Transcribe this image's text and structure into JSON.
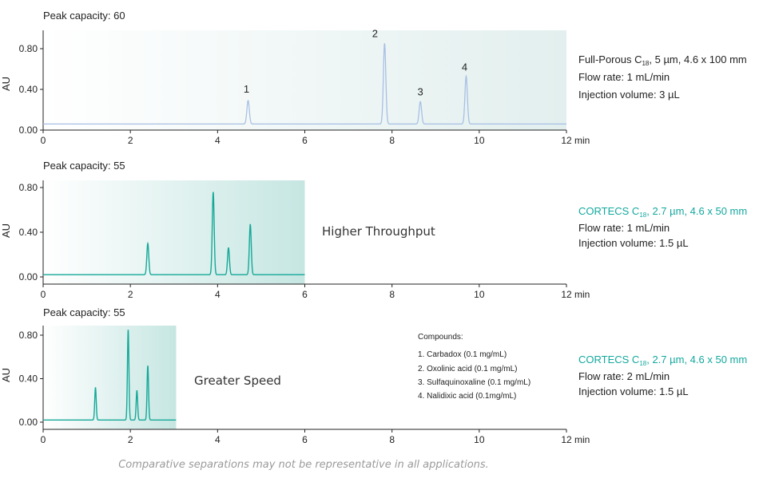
{
  "colors": {
    "blue_trace": "#a8c0e4",
    "teal_trace": "#15a898",
    "teal_text": "#13a89e"
  },
  "x_unit": "min",
  "x_ticks": [
    "0",
    "2",
    "4",
    "6",
    "8",
    "10",
    "12"
  ],
  "y_label": "AU",
  "y_ticks": [
    "0.00",
    "0.40",
    "0.80"
  ],
  "chart_data": [
    {
      "type": "line",
      "title": "Peak capacity: 60",
      "xlim": [
        0,
        12
      ],
      "ylim": [
        0,
        0.85
      ],
      "x_range_shaded": [
        0,
        12
      ],
      "peak_labels": [
        "1",
        "2",
        "3",
        "4"
      ],
      "peaks": [
        {
          "x": 4.7,
          "y": 0.29,
          "label": "1"
        },
        {
          "x": 7.83,
          "y": 0.85,
          "label": "2"
        },
        {
          "x": 8.65,
          "y": 0.28,
          "label": "3"
        },
        {
          "x": 9.7,
          "y": 0.53,
          "label": "4"
        }
      ],
      "baseline": 0.06,
      "color": "#a8c0e4",
      "info": {
        "column_pre": "Full-Porous C",
        "column_sub": "18",
        "column_post": ", 5 µm, 4.6 x 100 mm",
        "flow": "Flow rate: 1 mL/min",
        "inj": "Injection volume: 3 µL",
        "teal": false
      }
    },
    {
      "type": "line",
      "title": "Peak capacity:  55",
      "xlim": [
        0,
        12
      ],
      "ylim": [
        0,
        0.85
      ],
      "x_range_shaded": [
        0,
        6
      ],
      "peaks": [
        {
          "x": 2.4,
          "y": 0.3
        },
        {
          "x": 3.9,
          "y": 0.76
        },
        {
          "x": 4.25,
          "y": 0.26
        },
        {
          "x": 4.75,
          "y": 0.47
        }
      ],
      "baseline": 0.02,
      "annotation": "Higher Throughput",
      "color": "#15a898",
      "info": {
        "column_pre": "CORTECS C",
        "column_sub": "18",
        "column_post": ", 2.7 µm, 4.6 x 50 mm",
        "flow": "Flow rate: 1 mL/min",
        "inj": "Injection volume: 1.5 µL",
        "teal": true
      }
    },
    {
      "type": "line",
      "title": "Peak capacity: 55",
      "xlim": [
        0,
        12
      ],
      "ylim": [
        0,
        0.85
      ],
      "x_range_shaded": [
        0,
        3.05
      ],
      "peaks": [
        {
          "x": 1.2,
          "y": 0.32
        },
        {
          "x": 1.95,
          "y": 0.85
        },
        {
          "x": 2.15,
          "y": 0.29
        },
        {
          "x": 2.4,
          "y": 0.52
        }
      ],
      "baseline": 0.02,
      "annotation": "Greater Speed",
      "color": "#15a898",
      "info": {
        "column_pre": "CORTECS C",
        "column_sub": "18",
        "column_post": ", 2.7 µm, 4.6 x 50 mm",
        "flow": "Flow rate: 2 mL/min",
        "inj": "Injection volume: 1.5 µL",
        "teal": true
      }
    }
  ],
  "compounds": {
    "title": "Compounds:",
    "items": [
      "1. Carbadox (0.1 mg/mL)",
      "2. Oxolinic acid (0.1 mg/mL)",
      "3. Sulfaquinoxaline (0.1 mg/mL)",
      "4. Nalidixic acid (0.1mg/mL)"
    ]
  },
  "footnote": "Comparative separations may not be representative in all applications."
}
